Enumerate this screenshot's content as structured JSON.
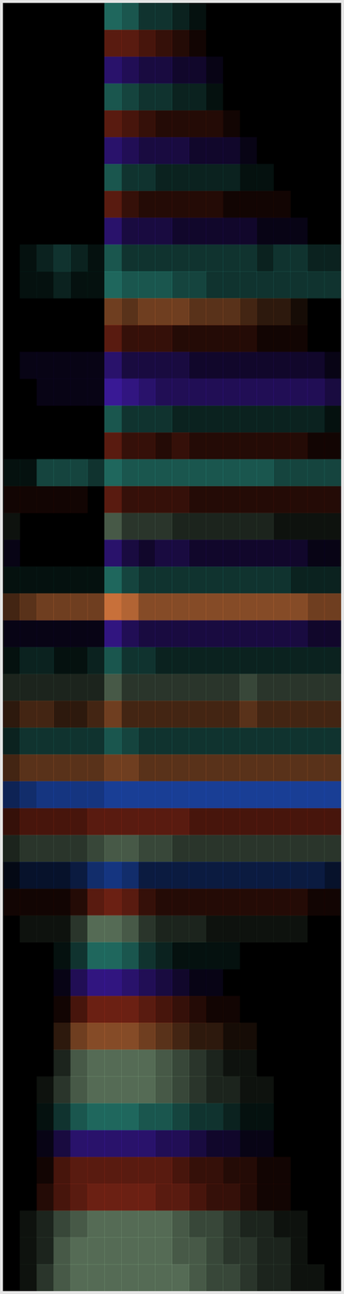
{
  "chart_data": {
    "type": "heatmap",
    "xlim": [
      0,
      20
    ],
    "ylim": [
      0,
      48
    ],
    "zlim": [
      0,
      9
    ],
    "tick_labels": false,
    "grid": false,
    "row_colors": [
      "#2f9a8c",
      "#a0301c",
      "#4a20c0",
      "#2f9a8c",
      "#a0301c",
      "#4a20c0",
      "#2f9a8c",
      "#a0301c",
      "#4a20c0",
      "#2f9a8c",
      "#2f9a8c",
      "#c8703a",
      "#a0301c",
      "#4a20c0",
      "#4a20c0",
      "#2f9a8c",
      "#a0301c",
      "#2f9a8c",
      "#a0301c",
      "#7fa080",
      "#4a20c0",
      "#2f9a8c",
      "#c8703a",
      "#4a20c0",
      "#2f9a8c",
      "#7fa080",
      "#c8703a",
      "#2f9a8c",
      "#c8703a",
      "#2050c0",
      "#a0301c",
      "#7fa080",
      "#2050c0",
      "#a0301c",
      "#7fa080",
      "#2f9a8c",
      "#4a20c0",
      "#a0301c",
      "#c8703a",
      "#7fa080",
      "#7fa080",
      "#2f9a8c",
      "#4a20c0",
      "#a0301c",
      "#a0301c",
      "#7fa080",
      "#7fa080",
      "#7fa080"
    ],
    "cells": [
      [
        0,
        0,
        0,
        0,
        0,
        0,
        6,
        5,
        3,
        3,
        2,
        1,
        0,
        0,
        0,
        0,
        0,
        0,
        0,
        0
      ],
      [
        0,
        0,
        0,
        0,
        0,
        0,
        5,
        5,
        4,
        3,
        2,
        1,
        0,
        0,
        0,
        0,
        0,
        0,
        0,
        0
      ],
      [
        0,
        0,
        0,
        0,
        0,
        0,
        5,
        4,
        3,
        3,
        2,
        2,
        1,
        0,
        0,
        0,
        0,
        0,
        0,
        0
      ],
      [
        0,
        0,
        0,
        0,
        0,
        0,
        5,
        4,
        3,
        3,
        2,
        2,
        1,
        0,
        0,
        0,
        0,
        0,
        0,
        0
      ],
      [
        0,
        0,
        0,
        0,
        0,
        0,
        5,
        4,
        3,
        2,
        2,
        2,
        2,
        1,
        0,
        0,
        0,
        0,
        0,
        0
      ],
      [
        0,
        0,
        0,
        0,
        0,
        0,
        5,
        4,
        3,
        3,
        3,
        2,
        2,
        2,
        1,
        0,
        0,
        0,
        0,
        0
      ],
      [
        0,
        0,
        0,
        0,
        0,
        0,
        5,
        3,
        3,
        2,
        2,
        2,
        2,
        2,
        1,
        1,
        0,
        0,
        0,
        0
      ],
      [
        0,
        0,
        0,
        0,
        0,
        0,
        5,
        3,
        2,
        2,
        2,
        2,
        2,
        1,
        1,
        1,
        1,
        0,
        0,
        0
      ],
      [
        0,
        0,
        0,
        0,
        0,
        0,
        5,
        3,
        3,
        3,
        2,
        2,
        2,
        2,
        2,
        1,
        1,
        1,
        0,
        0
      ],
      [
        0,
        1,
        2,
        3,
        2,
        1,
        5,
        3,
        3,
        3,
        3,
        3,
        3,
        3,
        3,
        2,
        3,
        3,
        2,
        2
      ],
      [
        0,
        1,
        1,
        2,
        1,
        1,
        6,
        5,
        5,
        5,
        4,
        4,
        3,
        3,
        3,
        3,
        3,
        3,
        3,
        3
      ],
      [
        0,
        0,
        0,
        0,
        0,
        0,
        5,
        4,
        5,
        5,
        5,
        4,
        4,
        4,
        3,
        2,
        2,
        1,
        0,
        0
      ],
      [
        0,
        0,
        0,
        0,
        0,
        0,
        5,
        3,
        3,
        3,
        2,
        2,
        2,
        2,
        2,
        1,
        1,
        1,
        0,
        0
      ],
      [
        0,
        1,
        1,
        1,
        1,
        1,
        5,
        3,
        3,
        3,
        3,
        2,
        2,
        2,
        2,
        2,
        2,
        2,
        2,
        1
      ],
      [
        0,
        0,
        1,
        1,
        1,
        1,
        7,
        6,
        5,
        4,
        4,
        4,
        4,
        4,
        4,
        4,
        4,
        4,
        4,
        3
      ],
      [
        0,
        0,
        0,
        0,
        0,
        0,
        5,
        3,
        3,
        3,
        2,
        2,
        2,
        2,
        2,
        2,
        2,
        2,
        2,
        1
      ],
      [
        0,
        0,
        0,
        0,
        0,
        0,
        5,
        3,
        3,
        2,
        3,
        2,
        2,
        2,
        2,
        2,
        2,
        2,
        1,
        1
      ],
      [
        1,
        1,
        4,
        4,
        4,
        3,
        6,
        5,
        5,
        5,
        5,
        5,
        5,
        5,
        5,
        5,
        4,
        4,
        4,
        4
      ],
      [
        1,
        1,
        1,
        1,
        1,
        0,
        5,
        3,
        3,
        3,
        3,
        2,
        2,
        2,
        2,
        2,
        2,
        2,
        2,
        2
      ],
      [
        1,
        0,
        0,
        0,
        0,
        0,
        5,
        3,
        3,
        3,
        2,
        2,
        2,
        2,
        2,
        2,
        1,
        1,
        1,
        1
      ],
      [
        1,
        0,
        0,
        0,
        0,
        0,
        5,
        3,
        2,
        3,
        3,
        2,
        2,
        2,
        2,
        2,
        2,
        2,
        1,
        1
      ],
      [
        1,
        1,
        1,
        1,
        1,
        1,
        6,
        4,
        3,
        3,
        3,
        3,
        3,
        3,
        3,
        3,
        3,
        2,
        2,
        2
      ],
      [
        3,
        4,
        5,
        5,
        5,
        5,
        9,
        8,
        6,
        6,
        6,
        6,
        6,
        6,
        6,
        6,
        6,
        6,
        5,
        5
      ],
      [
        1,
        1,
        1,
        1,
        1,
        1,
        6,
        4,
        3,
        3,
        3,
        3,
        3,
        3,
        3,
        3,
        3,
        3,
        2,
        2
      ],
      [
        1,
        2,
        2,
        1,
        1,
        2,
        5,
        3,
        3,
        2,
        2,
        2,
        2,
        2,
        2,
        2,
        2,
        2,
        2,
        2
      ],
      [
        2,
        2,
        2,
        2,
        2,
        2,
        5,
        3,
        3,
        3,
        3,
        3,
        3,
        3,
        4,
        3,
        3,
        3,
        3,
        3
      ],
      [
        2,
        3,
        3,
        2,
        2,
        3,
        5,
        3,
        3,
        3,
        3,
        3,
        3,
        3,
        4,
        3,
        3,
        3,
        3,
        3
      ],
      [
        2,
        3,
        3,
        3,
        3,
        3,
        5,
        4,
        3,
        3,
        3,
        3,
        3,
        3,
        3,
        3,
        3,
        3,
        3,
        3
      ],
      [
        3,
        4,
        4,
        4,
        4,
        4,
        5,
        5,
        4,
        4,
        4,
        4,
        4,
        4,
        4,
        4,
        4,
        4,
        4,
        4
      ],
      [
        4,
        5,
        6,
        6,
        6,
        6,
        7,
        7,
        7,
        7,
        7,
        7,
        7,
        7,
        7,
        7,
        7,
        7,
        7,
        7
      ],
      [
        3,
        4,
        4,
        4,
        4,
        5,
        5,
        5,
        5,
        5,
        5,
        4,
        4,
        4,
        4,
        4,
        4,
        4,
        4,
        4
      ],
      [
        2,
        3,
        3,
        3,
        3,
        4,
        5,
        5,
        4,
        4,
        3,
        3,
        3,
        3,
        3,
        3,
        3,
        3,
        3,
        3
      ],
      [
        1,
        2,
        2,
        2,
        3,
        5,
        6,
        5,
        3,
        3,
        3,
        3,
        3,
        3,
        3,
        3,
        3,
        3,
        3,
        2
      ],
      [
        1,
        1,
        1,
        1,
        2,
        5,
        6,
        5,
        3,
        2,
        2,
        2,
        2,
        2,
        2,
        2,
        2,
        2,
        1,
        1
      ],
      [
        0,
        1,
        1,
        1,
        3,
        6,
        6,
        5,
        3,
        2,
        2,
        2,
        1,
        1,
        1,
        1,
        1,
        1,
        0,
        0
      ],
      [
        0,
        0,
        0,
        1,
        3,
        6,
        6,
        5,
        3,
        2,
        1,
        1,
        1,
        1,
        0,
        0,
        0,
        0,
        0,
        0
      ],
      [
        0,
        0,
        0,
        1,
        4,
        6,
        6,
        5,
        4,
        3,
        2,
        1,
        1,
        0,
        0,
        0,
        0,
        0,
        0,
        0
      ],
      [
        0,
        0,
        0,
        1,
        4,
        6,
        6,
        6,
        5,
        4,
        3,
        2,
        1,
        1,
        0,
        0,
        0,
        0,
        0,
        0
      ],
      [
        0,
        0,
        0,
        2,
        5,
        6,
        6,
        6,
        5,
        4,
        3,
        2,
        2,
        1,
        1,
        0,
        0,
        0,
        0,
        0
      ],
      [
        0,
        0,
        0,
        2,
        5,
        6,
        6,
        6,
        6,
        5,
        4,
        3,
        2,
        1,
        1,
        0,
        0,
        0,
        0,
        0
      ],
      [
        0,
        0,
        1,
        3,
        5,
        6,
        6,
        6,
        6,
        5,
        4,
        3,
        2,
        2,
        1,
        1,
        0,
        0,
        0,
        0
      ],
      [
        0,
        0,
        1,
        3,
        5,
        6,
        6,
        6,
        5,
        5,
        4,
        3,
        3,
        2,
        1,
        1,
        0,
        0,
        0,
        0
      ],
      [
        0,
        0,
        1,
        3,
        5,
        5,
        5,
        5,
        5,
        4,
        4,
        3,
        2,
        2,
        1,
        1,
        0,
        0,
        0,
        0
      ],
      [
        0,
        0,
        1,
        4,
        5,
        5,
        5,
        5,
        5,
        5,
        4,
        3,
        3,
        2,
        2,
        1,
        1,
        0,
        0,
        0
      ],
      [
        0,
        0,
        2,
        4,
        5,
        6,
        6,
        6,
        6,
        5,
        5,
        4,
        3,
        3,
        2,
        1,
        1,
        0,
        0,
        0
      ],
      [
        0,
        1,
        2,
        4,
        5,
        6,
        6,
        6,
        6,
        6,
        5,
        4,
        4,
        3,
        2,
        2,
        1,
        1,
        0,
        0
      ],
      [
        0,
        1,
        2,
        5,
        6,
        6,
        6,
        6,
        6,
        6,
        5,
        5,
        4,
        3,
        3,
        2,
        2,
        1,
        0,
        0
      ],
      [
        0,
        1,
        3,
        5,
        6,
        6,
        6,
        6,
        6,
        6,
        6,
        5,
        4,
        4,
        3,
        2,
        2,
        1,
        1,
        0
      ]
    ]
  }
}
